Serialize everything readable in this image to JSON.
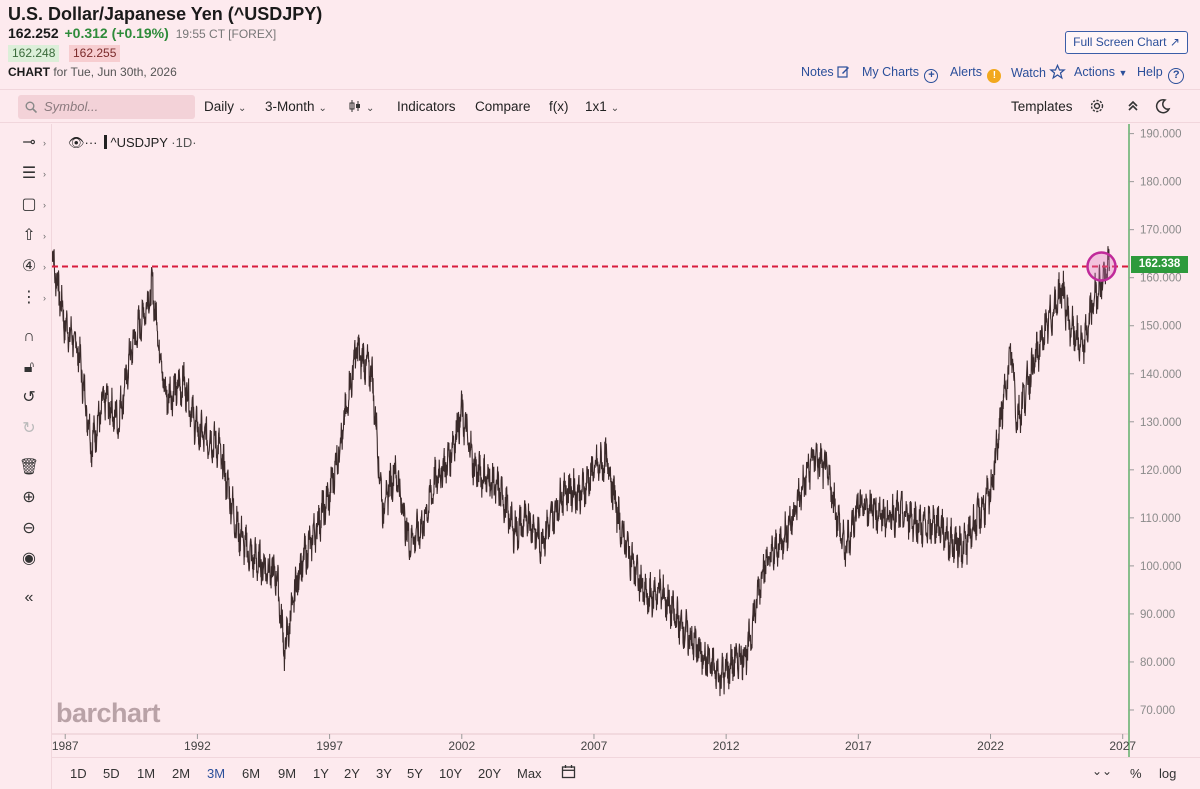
{
  "header": {
    "title": "U.S. Dollar/Japanese Yen (^USDJPY)",
    "last": "162.252",
    "change": "+0.312 (+0.19%)",
    "time": "19:55 CT [FOREX]",
    "bid": "162.248",
    "ask": "162.255",
    "chart_label": "CHART",
    "chart_date": "for Tue, Jun 30th, 2026"
  },
  "top_links": {
    "full_screen": "Full Screen Chart",
    "notes": "Notes",
    "my_charts": "My Charts",
    "alerts": "Alerts",
    "alerts_badge": "!",
    "watch": "Watch",
    "actions": "Actions",
    "help": "Help"
  },
  "toolbar": {
    "symbol_placeholder": "Symbol...",
    "interval": "Daily",
    "period": "3-Month",
    "indicators": "Indicators",
    "compare": "Compare",
    "fx": "f(x)",
    "layout": "1x1",
    "templates": "Templates"
  },
  "legend": {
    "symbol": "^USDJPY",
    "interval": "·1D·"
  },
  "watermark": "barchart",
  "range_buttons": [
    "1D",
    "5D",
    "1M",
    "2M",
    "3M",
    "6M",
    "9M",
    "1Y",
    "2Y",
    "3Y",
    "5Y",
    "10Y",
    "20Y",
    "Max"
  ],
  "active_range": "3M",
  "bottom_right": {
    "percent": "%",
    "log": "log"
  },
  "colors": {
    "background": "#fdeaee",
    "price_line": "#3a2a2a",
    "reference_line": "#d81b3c",
    "price_box": "#2e9a3c",
    "highlight_circle": "#c02a9a",
    "link": "#2b4f9a"
  },
  "chart_data": {
    "type": "line",
    "series": [
      {
        "x": [
          1986.5,
          1987.0,
          1987.5,
          1988.0,
          1988.5,
          1989.0,
          1989.5,
          1990.3,
          1990.8,
          1991.5,
          1992.0,
          1992.8,
          1993.5,
          1994.0,
          1994.5,
          1995.0,
          1995.3,
          1995.8,
          1996.5,
          1997.0,
          1997.5,
          1998.0,
          1998.6,
          1999.0,
          1999.5,
          2000.0,
          2000.5,
          2001.0,
          2001.5,
          2002.0,
          2002.5,
          2003.0,
          2003.5,
          2004.0,
          2004.5,
          2005.0,
          2005.9,
          2006.5,
          2007.0,
          2007.5,
          2008.0,
          2008.5,
          2009.0,
          2009.5,
          2010.0,
          2010.5,
          2011.0,
          2011.8,
          2012.3,
          2012.8,
          2013.4,
          2014.0,
          2014.5,
          2015.3,
          2015.8,
          2016.5,
          2017.0,
          2017.5,
          2018.0,
          2018.5,
          2019.0,
          2019.5,
          2020.0,
          2020.5,
          2021.0,
          2021.5,
          2022.0,
          2022.5,
          2022.8,
          2023.0,
          2023.5,
          2024.0,
          2024.5,
          2024.7,
          2025.0,
          2025.5,
          2025.8,
          2026.0,
          2026.5
        ],
        "y": [
          165,
          150,
          145,
          125,
          135,
          130,
          145,
          158,
          135,
          138,
          128,
          125,
          108,
          102,
          100,
          98,
          82,
          98,
          108,
          115,
          128,
          145,
          140,
          112,
          120,
          105,
          108,
          118,
          122,
          132,
          120,
          118,
          115,
          107,
          110,
          105,
          116,
          115,
          120,
          122,
          108,
          100,
          93,
          95,
          90,
          86,
          82,
          77,
          80,
          82,
          100,
          104,
          110,
          123,
          120,
          103,
          113,
          112,
          110,
          111,
          110,
          108,
          109,
          105,
          104,
          110,
          115,
          135,
          145,
          130,
          140,
          148,
          155,
          158,
          150,
          145,
          153,
          157,
          162.3
        ]
      }
    ],
    "reference_line": 162.338,
    "current_price_label": "162.338",
    "x_ticks": [
      "1987",
      "1992",
      "1997",
      "2002",
      "2007",
      "2012",
      "2017",
      "2022",
      "2027"
    ],
    "y_ticks": [
      "70.000",
      "80.000",
      "90.000",
      "100.000",
      "110.000",
      "120.000",
      "130.000",
      "140.000",
      "150.000",
      "160.000",
      "170.000",
      "180.000",
      "190.000"
    ],
    "xlim": [
      1986.5,
      2027.2
    ],
    "ylim": [
      65,
      192
    ]
  }
}
